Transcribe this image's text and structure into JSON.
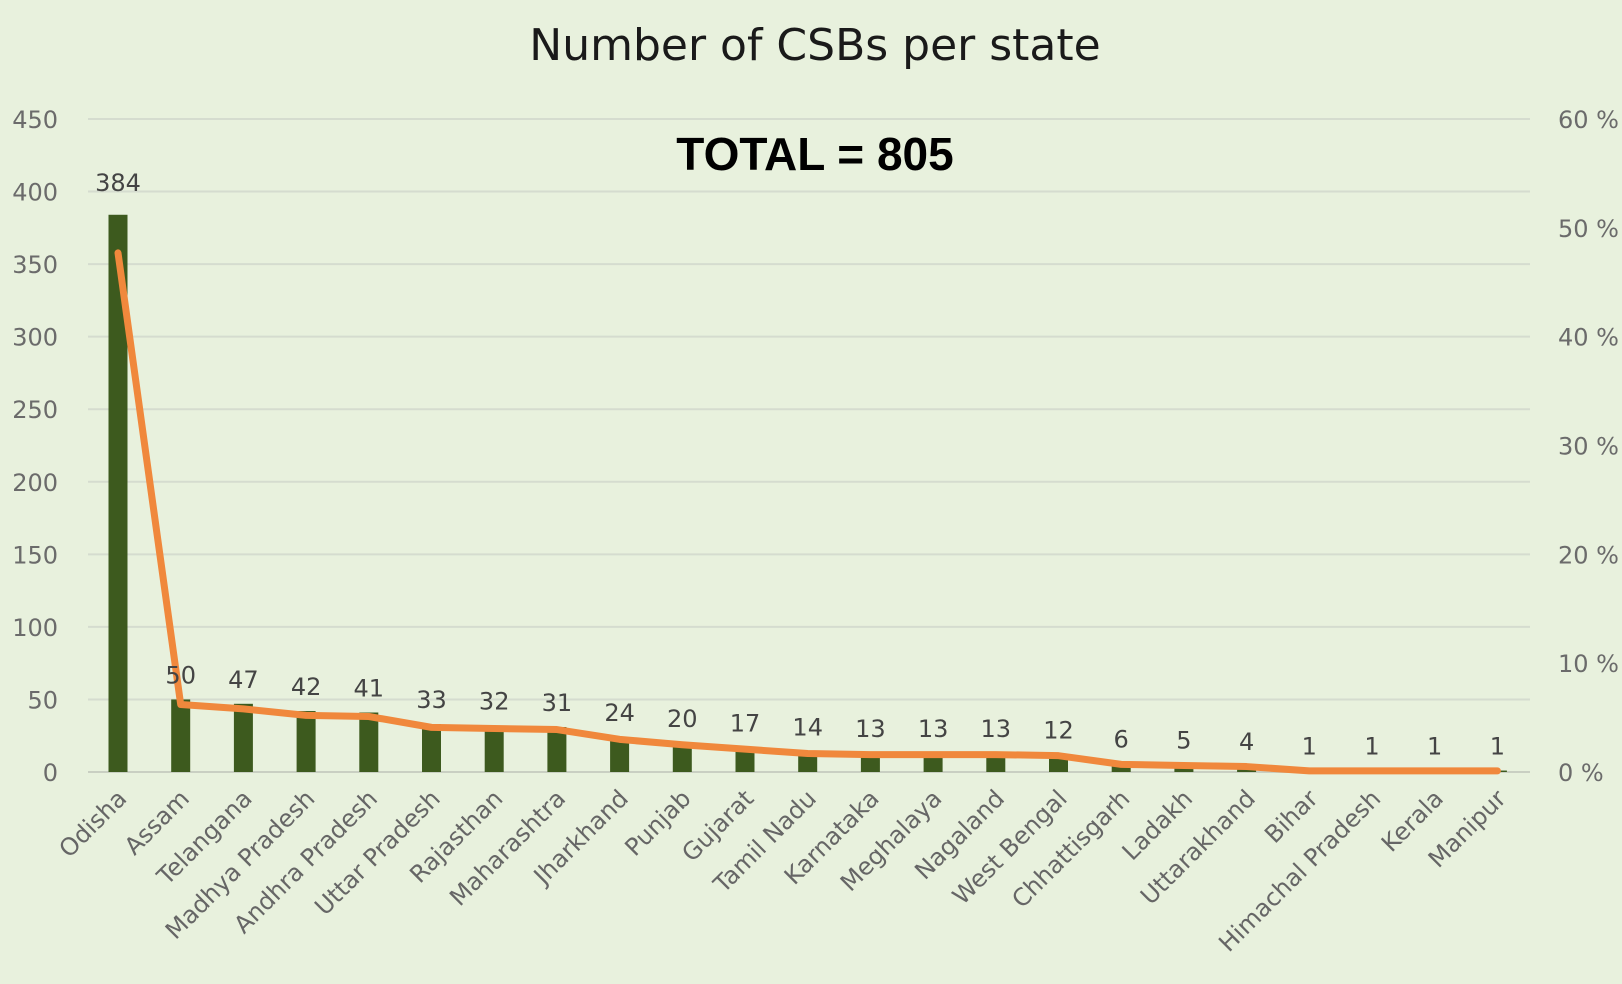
{
  "chart_data": {
    "type": "bar",
    "title": "Number of CSBs per state",
    "annotation": "TOTAL = 805",
    "categories": [
      "Odisha",
      "Assam",
      "Telangana",
      "Madhya Pradesh",
      "Andhra Pradesh",
      "Uttar Pradesh",
      "Rajasthan",
      "Maharashtra",
      "Jharkhand",
      "Punjab",
      "Gujarat",
      "Tamil Nadu",
      "Karnataka",
      "Meghalaya",
      "Nagaland",
      "West Bengal",
      "Chhattisgarh",
      "Ladakh",
      "Uttarakhand",
      "Bihar",
      "Himachal Pradesh",
      "Kerala",
      "Manipur"
    ],
    "series": [
      {
        "type": "bar",
        "axis": "left",
        "color": "#3d5a1e",
        "values": [
          384,
          50,
          47,
          42,
          41,
          33,
          32,
          31,
          24,
          20,
          17,
          14,
          13,
          13,
          13,
          12,
          6,
          5,
          4,
          1,
          1,
          1,
          1
        ]
      },
      {
        "type": "line",
        "axis": "right",
        "color": "#f0883c",
        "values": [
          47.7,
          6.2,
          5.8,
          5.2,
          5.1,
          4.1,
          4.0,
          3.9,
          3.0,
          2.5,
          2.1,
          1.7,
          1.6,
          1.6,
          1.6,
          1.5,
          0.7,
          0.6,
          0.5,
          0.1,
          0.1,
          0.1,
          0.1
        ]
      }
    ],
    "data_labels": [
      "384",
      "50",
      "47",
      "42",
      "41",
      "33",
      "32",
      "31",
      "24",
      "20",
      "17",
      "14",
      "13",
      "13",
      "13",
      "12",
      "6",
      "5",
      "4",
      "1",
      "1",
      "1",
      "1"
    ],
    "y_left": {
      "ylim": [
        0,
        450
      ],
      "ticks": [
        0,
        50,
        100,
        150,
        200,
        250,
        300,
        350,
        400,
        450
      ]
    },
    "y_right": {
      "ylim": [
        0,
        60
      ],
      "ticks": [
        0,
        10,
        20,
        30,
        40,
        50,
        60
      ],
      "tick_labels": [
        "0 %",
        "10 %",
        "20 %",
        "30 %",
        "40 %",
        "50 %",
        "60 %"
      ]
    },
    "grid": true,
    "legend": "none"
  }
}
